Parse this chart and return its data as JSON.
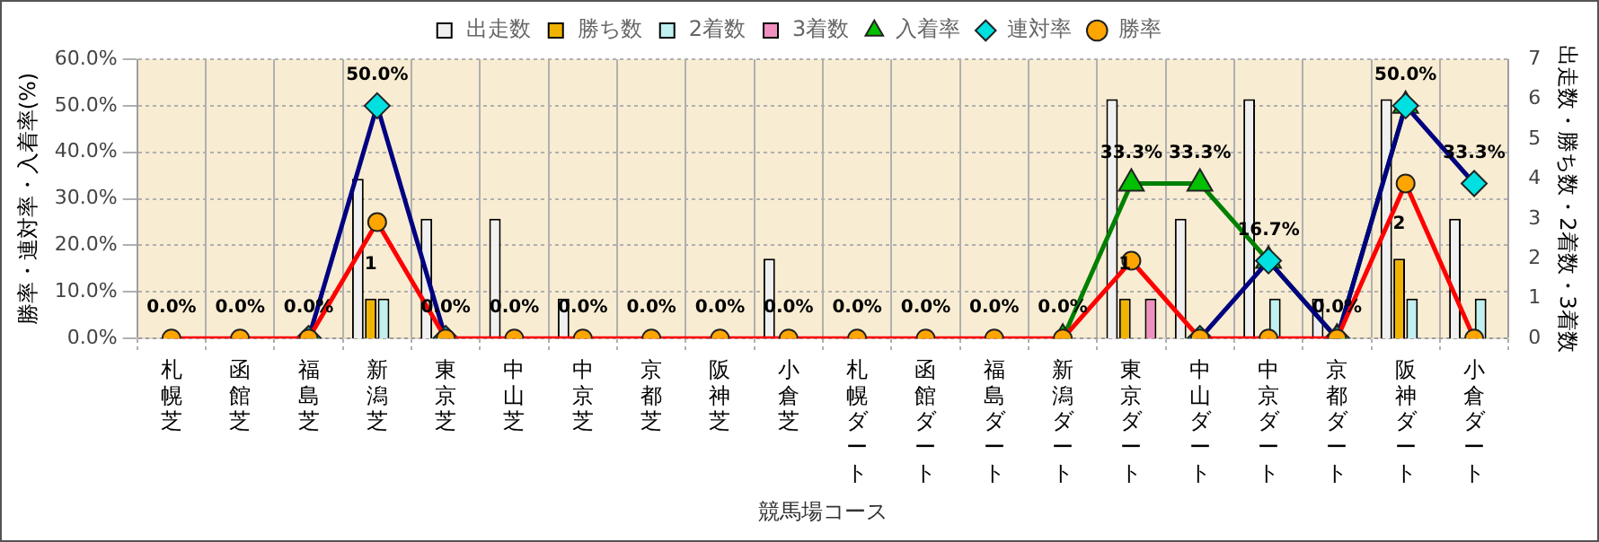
{
  "chart_data": {
    "type": "bar",
    "xlabel": "競馬場コース",
    "ylabel": "勝率・連対率・入着率(%)",
    "y2label": "出走数・勝ち数・2着数・3着数",
    "categories": [
      "札幌芝",
      "函館芝",
      "福島芝",
      "新潟芝",
      "東京芝",
      "中山芝",
      "中京芝",
      "京都芝",
      "阪神芝",
      "小倉芝",
      "札幌ダート",
      "函館ダート",
      "福島ダート",
      "新潟ダート",
      "東京ダート",
      "中山ダート",
      "中京ダート",
      "京都ダート",
      "阪神ダート",
      "小倉ダート"
    ],
    "series": [
      {
        "name": "出走数",
        "axis": "y2",
        "color": "#f0f0f0",
        "values": [
          0,
          0,
          0,
          4,
          3,
          3,
          1,
          0,
          0,
          2,
          0,
          0,
          0,
          0,
          6,
          3,
          6,
          1,
          6,
          3
        ]
      },
      {
        "name": "勝ち数",
        "axis": "y2",
        "color": "#f0b400",
        "values": [
          0,
          0,
          0,
          1,
          0,
          0,
          0,
          0,
          0,
          0,
          0,
          0,
          0,
          0,
          1,
          0,
          0,
          0,
          2,
          0
        ],
        "value_labels": [
          null,
          null,
          null,
          "1",
          null,
          null,
          null,
          null,
          null,
          null,
          null,
          null,
          null,
          null,
          "1",
          null,
          null,
          null,
          "2",
          null
        ]
      },
      {
        "name": "2着数",
        "axis": "y2",
        "color": "#c0f0f0",
        "values": [
          0,
          0,
          0,
          1,
          0,
          0,
          0,
          0,
          0,
          0,
          0,
          0,
          0,
          0,
          0,
          0,
          1,
          0,
          1,
          1
        ]
      },
      {
        "name": "3着数",
        "axis": "y2",
        "color": "#f090c0",
        "values": [
          0,
          0,
          0,
          0,
          0,
          0,
          0,
          0,
          0,
          0,
          0,
          0,
          0,
          0,
          1,
          0,
          0,
          0,
          0,
          0
        ]
      },
      {
        "name": "入着率",
        "type": "line",
        "marker": "triangle",
        "color": "#008000",
        "values": [
          null,
          null,
          null,
          null,
          null,
          null,
          null,
          null,
          null,
          null,
          null,
          null,
          null,
          0,
          33.3,
          33.3,
          16.7,
          0,
          50,
          null
        ],
        "value_labels": [
          null,
          null,
          null,
          null,
          null,
          null,
          null,
          null,
          null,
          null,
          null,
          null,
          null,
          "0.0%",
          "33.3%",
          "33.3%",
          "16.7%",
          "0.0%",
          "50.0%",
          null
        ]
      },
      {
        "name": "連対率",
        "type": "line",
        "marker": "diamond",
        "color": "#000080",
        "values": [
          null,
          null,
          0,
          50,
          0,
          null,
          null,
          null,
          null,
          null,
          null,
          null,
          null,
          null,
          null,
          0,
          16.7,
          0,
          50,
          33.3
        ],
        "value_labels": [
          null,
          null,
          null,
          "50.0%",
          null,
          null,
          null,
          null,
          null,
          null,
          null,
          null,
          null,
          null,
          null,
          null,
          null,
          null,
          null,
          "33.3%"
        ]
      },
      {
        "name": "勝率",
        "type": "line",
        "marker": "circle",
        "color": "#ff0000",
        "values": [
          0,
          0,
          0,
          25,
          0,
          0,
          0,
          0,
          0,
          0,
          0,
          0,
          0,
          0,
          16.7,
          0,
          0,
          0,
          33.3,
          0
        ],
        "value_labels": [
          "0.0%",
          "0.0%",
          "0.0%",
          null,
          "0.0%",
          "0.0%",
          "0.0%",
          "0.0%",
          "0.0%",
          "0.0%",
          "0.0%",
          "0.0%",
          "0.0%",
          null,
          null,
          null,
          null,
          null,
          null,
          null
        ]
      }
    ],
    "ylim": [
      0,
      60
    ],
    "yticks": [
      {
        "value": 0,
        "label": "0.0%"
      },
      {
        "value": 10,
        "label": "10.0%"
      },
      {
        "value": 20,
        "label": "20.0%"
      },
      {
        "value": 30,
        "label": "30.0%"
      },
      {
        "value": 40,
        "label": "40.0%"
      },
      {
        "value": 50,
        "label": "50.0%"
      },
      {
        "value": 60,
        "label": "60.0%"
      }
    ],
    "y2lim": [
      0,
      7
    ],
    "y2ticks": [
      0,
      1,
      2,
      3,
      4,
      5,
      6,
      7
    ],
    "grid": true,
    "legend": "top"
  }
}
